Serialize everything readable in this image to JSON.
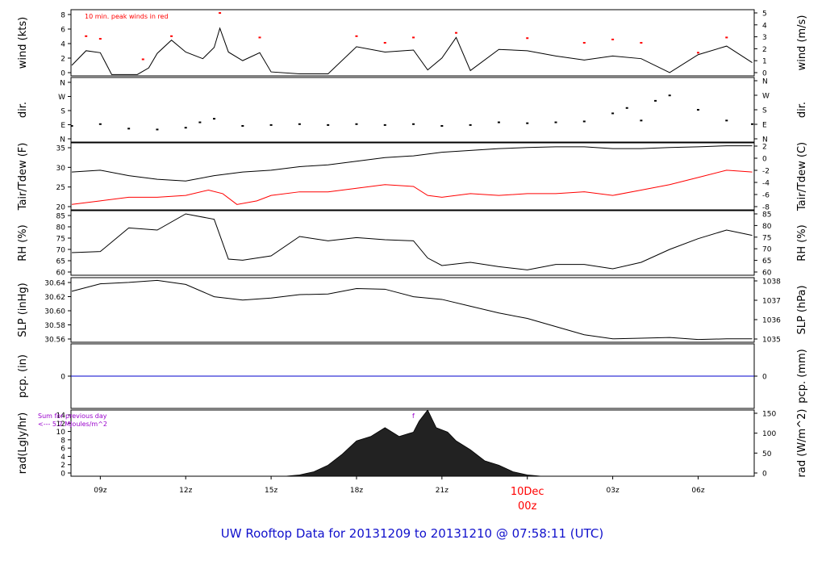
{
  "footer": {
    "title": "UW Rooftop Data for 20131209  to  20131210 @ 07:58:11  (UTC)"
  },
  "colors": {
    "black": "#000000",
    "red": "#ff0000",
    "blue": "#0000cc",
    "purple": "#9900cc",
    "title_blue": "#1111cc"
  },
  "time_axis": {
    "tick_labels": [
      "09z",
      "12z",
      "15z",
      "18z",
      "21z",
      "03z",
      "06z"
    ],
    "tick_hours": [
      9,
      12,
      15,
      18,
      21,
      27,
      30
    ],
    "date_label": "10Dec",
    "date_sub_label": "00z",
    "date_hour": 24,
    "range_hours": [
      7.97,
      31.97
    ]
  },
  "chart_data": [
    {
      "type": "line",
      "panel": "wind",
      "left_label": "wind (kts)",
      "right_label": "wind (m/s)",
      "annotation": "10 min. peak winds in red",
      "left_ticks": [
        "0",
        "2",
        "4",
        "6",
        "8"
      ],
      "right_ticks": [
        "0",
        "1",
        "2",
        "3",
        "4",
        "5"
      ],
      "ylim": [
        0,
        10
      ],
      "series": [
        {
          "values": [
            [
              8,
              1.6
            ],
            [
              8.5,
              3.8
            ],
            [
              9,
              3.5
            ],
            [
              9.4,
              0.2
            ],
            [
              10.3,
              0.2
            ],
            [
              10.7,
              1.2
            ],
            [
              11,
              3.4
            ],
            [
              11.5,
              5.4
            ],
            [
              12,
              3.6
            ],
            [
              12.6,
              2.6
            ],
            [
              13,
              4.3
            ],
            [
              13.2,
              7.2
            ],
            [
              13.5,
              3.6
            ],
            [
              14,
              2.3
            ],
            [
              14.6,
              3.5
            ],
            [
              15,
              0.6
            ],
            [
              16,
              0.3
            ],
            [
              17,
              0.3
            ],
            [
              18,
              4.4
            ],
            [
              19,
              3.6
            ],
            [
              20,
              3.9
            ],
            [
              20.5,
              0.9
            ],
            [
              21,
              2.7
            ],
            [
              21.5,
              5.8
            ],
            [
              22,
              0.8
            ],
            [
              23,
              4.0
            ],
            [
              24,
              3.8
            ],
            [
              25,
              3.0
            ],
            [
              26,
              2.4
            ],
            [
              27,
              3.0
            ],
            [
              28,
              2.6
            ],
            [
              29,
              0.5
            ],
            [
              30,
              3.2
            ],
            [
              31,
              4.5
            ],
            [
              31.9,
              2.0
            ]
          ]
        },
        {
          "values": [
            [
              8.5,
              6.0
            ],
            [
              9,
              5.6
            ],
            [
              10.5,
              2.5
            ],
            [
              11.5,
              6.0
            ],
            [
              13.2,
              9.5
            ],
            [
              14.6,
              5.8
            ],
            [
              18,
              6.0
            ],
            [
              19,
              5.0
            ],
            [
              20,
              5.8
            ],
            [
              21.5,
              6.5
            ],
            [
              24,
              5.7
            ],
            [
              26,
              5.0
            ],
            [
              27,
              5.5
            ],
            [
              28,
              5.0
            ],
            [
              30,
              3.5
            ],
            [
              31,
              5.8
            ]
          ]
        }
      ]
    },
    {
      "type": "scatter",
      "panel": "dir",
      "left_label": "dir.",
      "right_label": "dir.",
      "left_ticks": [
        "N",
        "E",
        "S",
        "W",
        "N"
      ],
      "right_ticks": [
        "N",
        "E",
        "S",
        "W",
        "N"
      ],
      "ylim": [
        0,
        360
      ],
      "series": [
        {
          "values": [
            [
              8,
              90
            ],
            [
              9,
              100
            ],
            [
              10,
              75
            ],
            [
              11,
              70
            ],
            [
              12,
              80
            ],
            [
              12.5,
              110
            ],
            [
              13,
              130
            ],
            [
              14,
              90
            ],
            [
              15,
              95
            ],
            [
              16,
              100
            ],
            [
              17,
              95
            ],
            [
              18,
              100
            ],
            [
              19,
              95
            ],
            [
              20,
              100
            ],
            [
              21,
              90
            ],
            [
              22,
              95
            ],
            [
              23,
              110
            ],
            [
              24,
              105
            ],
            [
              25,
              110
            ],
            [
              26,
              115
            ],
            [
              27,
              160
            ],
            [
              27.5,
              190
            ],
            [
              28,
              120
            ],
            [
              28.5,
              230
            ],
            [
              29,
              260
            ],
            [
              30,
              180
            ],
            [
              31,
              120
            ],
            [
              31.9,
              100
            ]
          ]
        }
      ]
    },
    {
      "type": "line",
      "panel": "temp",
      "left_label": "Tair/Tdew (F)",
      "right_label": "Tair/Tdew (C)",
      "left_ticks": [
        "20",
        "25",
        "30",
        "35"
      ],
      "right_ticks": [
        "-8",
        "-6",
        "-4",
        "-2",
        "0",
        "2"
      ],
      "ylim": [
        17,
        35.6
      ],
      "series": [
        {
          "values": [
            [
              8,
              27.5
            ],
            [
              9,
              28.0
            ],
            [
              10,
              26.5
            ],
            [
              11,
              25.5
            ],
            [
              12,
              25.0
            ],
            [
              13,
              26.5
            ],
            [
              14,
              27.5
            ],
            [
              15,
              28.0
            ],
            [
              16,
              29.0
            ],
            [
              17,
              29.5
            ],
            [
              18,
              30.5
            ],
            [
              19,
              31.5
            ],
            [
              20,
              32.0
            ],
            [
              21,
              33.0
            ],
            [
              22,
              33.5
            ],
            [
              23,
              34.0
            ],
            [
              24,
              34.3
            ],
            [
              25,
              34.5
            ],
            [
              26,
              34.5
            ],
            [
              27,
              34.0
            ],
            [
              28,
              34.0
            ],
            [
              29,
              34.3
            ],
            [
              30,
              34.5
            ],
            [
              31,
              34.8
            ],
            [
              31.9,
              34.8
            ]
          ]
        },
        {
          "values": [
            [
              8,
              18.5
            ],
            [
              9,
              19.5
            ],
            [
              10,
              20.5
            ],
            [
              11,
              20.5
            ],
            [
              12,
              21.0
            ],
            [
              12.8,
              22.5
            ],
            [
              13.3,
              21.5
            ],
            [
              13.8,
              18.5
            ],
            [
              14.5,
              19.5
            ],
            [
              15,
              21.0
            ],
            [
              16,
              22.0
            ],
            [
              17,
              22.0
            ],
            [
              18,
              23.0
            ],
            [
              19,
              24.0
            ],
            [
              20,
              23.5
            ],
            [
              20.5,
              21.0
            ],
            [
              21,
              20.5
            ],
            [
              22,
              21.5
            ],
            [
              23,
              21.0
            ],
            [
              24,
              21.5
            ],
            [
              25,
              21.5
            ],
            [
              26,
              22.0
            ],
            [
              27,
              21.0
            ],
            [
              28,
              22.5
            ],
            [
              29,
              24.0
            ],
            [
              30,
              26.0
            ],
            [
              31,
              28.0
            ],
            [
              31.9,
              27.5
            ]
          ]
        }
      ]
    },
    {
      "type": "line",
      "panel": "rh",
      "left_label": "RH (%)",
      "right_label": "RH (%)",
      "left_ticks": [
        "60",
        "65",
        "70",
        "75",
        "80",
        "85"
      ],
      "right_ticks": [
        "60",
        "65",
        "70",
        "75",
        "80",
        "85"
      ],
      "ylim": [
        56,
        86
      ],
      "series": [
        {
          "values": [
            [
              8,
              66.5
            ],
            [
              9,
              67
            ],
            [
              10,
              78
            ],
            [
              11,
              77
            ],
            [
              12,
              84.5
            ],
            [
              13,
              82
            ],
            [
              13.5,
              63.5
            ],
            [
              14,
              63
            ],
            [
              15,
              65
            ],
            [
              16,
              74
            ],
            [
              17,
              72
            ],
            [
              18,
              73.5
            ],
            [
              19,
              72.5
            ],
            [
              20,
              72
            ],
            [
              20.5,
              64
            ],
            [
              21,
              60.5
            ],
            [
              22,
              62
            ],
            [
              23,
              60
            ],
            [
              24,
              58.5
            ],
            [
              25,
              61
            ],
            [
              26,
              61
            ],
            [
              27,
              59
            ],
            [
              28,
              62
            ],
            [
              29,
              68
            ],
            [
              30,
              73
            ],
            [
              31,
              77
            ],
            [
              31.9,
              74.5
            ]
          ]
        }
      ]
    },
    {
      "type": "line",
      "panel": "slp",
      "left_label": "SLP (inHg)",
      "right_label": "SLP (hPa)",
      "left_ticks": [
        "30.56",
        "30.58",
        "30.60",
        "30.62",
        "30.64"
      ],
      "right_ticks": [
        "1035",
        "1036",
        "1037",
        "1038"
      ],
      "ylim": [
        30.555,
        30.65
      ],
      "series": [
        {
          "values": [
            [
              8,
              30.63
            ],
            [
              9,
              30.641
            ],
            [
              10,
              30.643
            ],
            [
              11,
              30.646
            ],
            [
              12,
              30.64
            ],
            [
              13,
              30.622
            ],
            [
              14,
              30.617
            ],
            [
              15,
              30.62
            ],
            [
              16,
              30.625
            ],
            [
              17,
              30.626
            ],
            [
              18,
              30.634
            ],
            [
              19,
              30.633
            ],
            [
              20,
              30.622
            ],
            [
              21,
              30.618
            ],
            [
              22,
              30.608
            ],
            [
              23,
              30.598
            ],
            [
              24,
              30.59
            ],
            [
              25,
              30.578
            ],
            [
              26,
              30.566
            ],
            [
              27,
              30.56
            ],
            [
              28,
              30.561
            ],
            [
              29,
              30.562
            ],
            [
              30,
              30.559
            ],
            [
              31,
              30.56
            ],
            [
              31.9,
              30.56
            ]
          ]
        }
      ]
    },
    {
      "type": "line",
      "panel": "pcp",
      "left_label": "pcp. (in)",
      "right_label": "pcp. (mm)",
      "left_ticks": [
        "0"
      ],
      "right_ticks": [
        "0"
      ],
      "ylim": [
        -1,
        1
      ],
      "series": [
        {
          "values": [
            [
              7.97,
              0
            ],
            [
              31.97,
              0
            ]
          ]
        }
      ]
    },
    {
      "type": "area",
      "panel": "rad",
      "left_label": "rad(Lgly/hr)",
      "right_label": "rad (W/m^2)",
      "annotation_1": "Sum for previous day",
      "annotation_2": "<--- 5.2 MJoules/m^2",
      "annotation_3": "f",
      "left_ticks": [
        "0",
        "2",
        "4",
        "6",
        "8",
        "10",
        "12",
        "14"
      ],
      "right_ticks": [
        "0",
        "50",
        "100",
        "150"
      ],
      "ylim": [
        0,
        15
      ],
      "series": [
        {
          "values": [
            [
              15.5,
              0
            ],
            [
              16,
              0.3
            ],
            [
              16.5,
              1
            ],
            [
              17,
              2.5
            ],
            [
              17.5,
              5
            ],
            [
              18,
              8
            ],
            [
              18.5,
              9
            ],
            [
              19,
              11
            ],
            [
              19.5,
              9
            ],
            [
              20,
              10
            ],
            [
              20.2,
              12.5
            ],
            [
              20.5,
              15
            ],
            [
              20.8,
              11
            ],
            [
              21.2,
              10
            ],
            [
              21.5,
              8
            ],
            [
              22,
              6
            ],
            [
              22.5,
              3.5
            ],
            [
              23,
              2.5
            ],
            [
              23.5,
              1
            ],
            [
              24,
              0.3
            ],
            [
              24.5,
              0
            ]
          ]
        }
      ]
    }
  ]
}
